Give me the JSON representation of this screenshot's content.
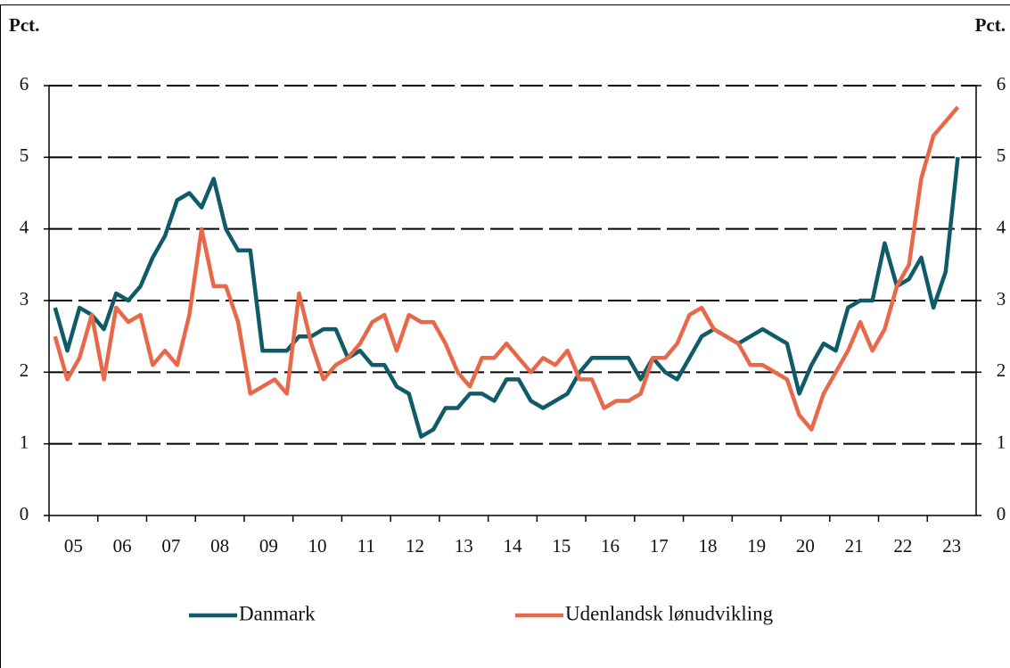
{
  "chart_data": {
    "type": "line",
    "y_axis_label": "Pct.",
    "y2_axis_label": "Pct.",
    "categories": [
      null,
      "05",
      null,
      null,
      null,
      "06",
      null,
      null,
      null,
      "07",
      null,
      null,
      null,
      "08",
      null,
      null,
      null,
      "09",
      null,
      null,
      null,
      "10",
      null,
      null,
      null,
      "11",
      null,
      null,
      null,
      "12",
      null,
      null,
      null,
      "13",
      null,
      null,
      null,
      "14",
      null,
      null,
      null,
      "15",
      null,
      null,
      null,
      "16",
      null,
      null,
      null,
      "17",
      null,
      null,
      null,
      "18",
      null,
      null,
      null,
      "19",
      null,
      null,
      null,
      "20",
      null,
      null,
      null,
      "21",
      null,
      null,
      null,
      "22",
      null,
      null,
      null,
      "23",
      null
    ],
    "series": [
      {
        "name": "Danmark",
        "color": "#0f5b68",
        "values": [
          2.9,
          2.3,
          2.9,
          2.8,
          2.6,
          3.1,
          3.0,
          3.2,
          3.6,
          3.9,
          4.4,
          4.5,
          4.3,
          4.7,
          4.0,
          3.7,
          3.7,
          2.3,
          2.3,
          2.3,
          2.5,
          2.5,
          2.6,
          2.6,
          2.2,
          2.3,
          2.1,
          2.1,
          1.8,
          1.7,
          1.1,
          1.2,
          1.5,
          1.5,
          1.7,
          1.7,
          1.6,
          1.9,
          1.9,
          1.6,
          1.5,
          1.6,
          1.7,
          2.0,
          2.2,
          2.2,
          2.2,
          2.2,
          1.9,
          2.2,
          2.0,
          1.9,
          2.2,
          2.5,
          2.6,
          2.5,
          2.4,
          2.5,
          2.6,
          2.5,
          2.4,
          1.7,
          2.1,
          2.4,
          2.3,
          2.9,
          3.0,
          3.0,
          3.8,
          3.2,
          3.3,
          3.6,
          2.9,
          3.4,
          5.0
        ]
      },
      {
        "name": "Udenlandsk lønudvikling",
        "color": "#e8684a",
        "values": [
          2.5,
          1.9,
          2.2,
          2.8,
          1.9,
          2.9,
          2.7,
          2.8,
          2.1,
          2.3,
          2.1,
          2.8,
          4.0,
          3.2,
          3.2,
          2.7,
          1.7,
          1.8,
          1.9,
          1.7,
          3.1,
          2.4,
          1.9,
          2.1,
          2.2,
          2.4,
          2.7,
          2.8,
          2.3,
          2.8,
          2.7,
          2.7,
          2.4,
          2.0,
          1.8,
          2.2,
          2.2,
          2.4,
          2.2,
          2.0,
          2.2,
          2.1,
          2.3,
          1.9,
          1.9,
          1.5,
          1.6,
          1.6,
          1.7,
          2.2,
          2.2,
          2.4,
          2.8,
          2.9,
          2.6,
          2.5,
          2.4,
          2.1,
          2.1,
          2.0,
          1.9,
          1.4,
          1.2,
          1.7,
          2.0,
          2.3,
          2.7,
          2.3,
          2.6,
          3.2,
          3.5,
          4.7,
          5.3,
          5.5,
          5.7
        ]
      }
    ],
    "ylim": [
      0,
      6
    ],
    "yticks": [
      0,
      1,
      2,
      3,
      4,
      5,
      6
    ],
    "y2lim": [
      0,
      6
    ],
    "y2ticks": [
      0,
      1,
      2,
      3,
      4,
      5,
      6
    ],
    "grid": true
  }
}
